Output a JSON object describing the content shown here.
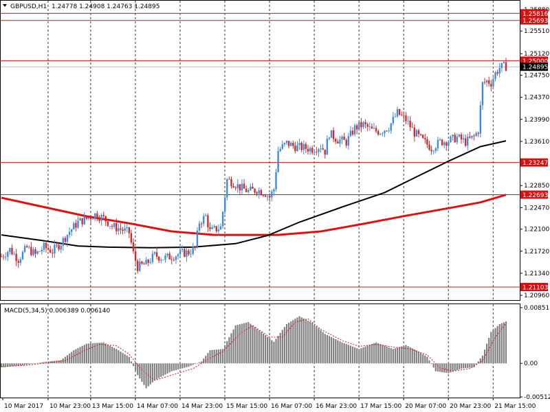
{
  "header": {
    "title": "GBPUSD,H1",
    "ohlc": "1.24778 1.24908 1.24763 1.24895"
  },
  "chart_data": {
    "type": "candlestick",
    "symbol": "GBPUSD",
    "timeframe": "H1",
    "price_ylim": [
      1.2089,
      1.2595
    ],
    "price_ticks": [
      "1.25880",
      "1.25510",
      "1.25120",
      "1.24750",
      "1.24370",
      "1.23990",
      "1.23610",
      "1.22850",
      "1.22470",
      "1.22100",
      "1.21720",
      "1.21340",
      "1.20960"
    ],
    "price_tick_values": [
      1.2588,
      1.2551,
      1.2512,
      1.2475,
      1.2437,
      1.2399,
      1.2361,
      1.2285,
      1.2247,
      1.221,
      1.2172,
      1.2134,
      1.2096
    ],
    "horizontal_levels": [
      {
        "label": "1.25816",
        "value": 1.25816
      },
      {
        "label": "1.25693",
        "value": 1.25693
      },
      {
        "label": "1.25000",
        "value": 1.25
      },
      {
        "label": "1.23247",
        "value": 1.23247
      },
      {
        "label": "1.22693",
        "value": 1.22693
      },
      {
        "label": "1.21103",
        "value": 1.21103
      }
    ],
    "current_price": {
      "label": "1.24895",
      "value": 1.24895
    },
    "x_labels": [
      "10 Mar 2017",
      "10 Mar 23:00",
      "13 Mar 15:00",
      "14 Mar 07:00",
      "14 Mar 23:00",
      "15 Mar 15:00",
      "16 Mar 07:00",
      "16 Mar 23:00",
      "17 Mar 15:00",
      "20 Mar 07:00",
      "20 Mar 23:00",
      "21 Mar 15:00"
    ],
    "close_path": [
      [
        0,
        1.2163
      ],
      [
        4,
        1.2175
      ],
      [
        8,
        1.2158
      ],
      [
        12,
        1.2178
      ],
      [
        16,
        1.2166
      ],
      [
        20,
        1.2179
      ],
      [
        24,
        1.2172
      ],
      [
        28,
        1.2186
      ],
      [
        32,
        1.2206
      ],
      [
        36,
        1.2222
      ],
      [
        40,
        1.2228
      ],
      [
        44,
        1.2235
      ],
      [
        48,
        1.2229
      ],
      [
        52,
        1.2215
      ],
      [
        56,
        1.221
      ],
      [
        60,
        1.2204
      ],
      [
        62,
        1.2168
      ],
      [
        64,
        1.2145
      ],
      [
        68,
        1.215
      ],
      [
        72,
        1.2165
      ],
      [
        76,
        1.216
      ],
      [
        80,
        1.2163
      ],
      [
        84,
        1.2168
      ],
      [
        88,
        1.217
      ],
      [
        91,
        1.2178
      ],
      [
        93,
        1.2222
      ],
      [
        96,
        1.2232
      ],
      [
        98,
        1.2206
      ],
      [
        100,
        1.2209
      ],
      [
        103,
        1.2213
      ],
      [
        106,
        1.2295
      ],
      [
        108,
        1.2292
      ],
      [
        112,
        1.2282
      ],
      [
        116,
        1.2275
      ],
      [
        120,
        1.2278
      ],
      [
        124,
        1.2272
      ],
      [
        126,
        1.2265
      ],
      [
        128,
        1.2279
      ],
      [
        130,
        1.2345
      ],
      [
        134,
        1.2358
      ],
      [
        138,
        1.2352
      ],
      [
        142,
        1.235
      ],
      [
        146,
        1.2348
      ],
      [
        150,
        1.2353
      ],
      [
        152,
        1.2344
      ],
      [
        154,
        1.2375
      ],
      [
        158,
        1.2364
      ],
      [
        162,
        1.236
      ],
      [
        166,
        1.2384
      ],
      [
        170,
        1.239
      ],
      [
        174,
        1.238
      ],
      [
        178,
        1.2378
      ],
      [
        182,
        1.2386
      ],
      [
        186,
        1.241
      ],
      [
        190,
        1.2398
      ],
      [
        194,
        1.2376
      ],
      [
        198,
        1.2362
      ],
      [
        202,
        1.235
      ],
      [
        206,
        1.236
      ],
      [
        210,
        1.2362
      ],
      [
        214,
        1.2368
      ],
      [
        218,
        1.236
      ],
      [
        222,
        1.2369
      ],
      [
        224,
        1.238
      ],
      [
        226,
        1.246
      ],
      [
        228,
        1.2465
      ],
      [
        230,
        1.2462
      ],
      [
        232,
        1.2478
      ],
      [
        234,
        1.2488
      ],
      [
        236,
        1.249
      ]
    ],
    "sma_black": [
      [
        0,
        1.22
      ],
      [
        20,
        1.219
      ],
      [
        36,
        1.2181
      ],
      [
        50,
        1.2179
      ],
      [
        70,
        1.2178
      ],
      [
        90,
        1.2179
      ],
      [
        110,
        1.2185
      ],
      [
        125,
        1.2199
      ],
      [
        140,
        1.2222
      ],
      [
        160,
        1.2248
      ],
      [
        180,
        1.2273
      ],
      [
        195,
        1.23
      ],
      [
        210,
        1.2327
      ],
      [
        225,
        1.2352
      ],
      [
        237,
        1.2362
      ]
    ],
    "sma_red": [
      [
        0,
        1.2264
      ],
      [
        20,
        1.2248
      ],
      [
        40,
        1.2232
      ],
      [
        60,
        1.222
      ],
      [
        80,
        1.2206
      ],
      [
        100,
        1.22
      ],
      [
        130,
        1.22
      ],
      [
        150,
        1.2206
      ],
      [
        170,
        1.2219
      ],
      [
        190,
        1.2233
      ],
      [
        210,
        1.2246
      ],
      [
        225,
        1.2256
      ],
      [
        237,
        1.2269
      ]
    ],
    "macd": {
      "label": "MACD(5,34,5) 0.006389 0.006140",
      "ylim": [
        -0.00512,
        0.00851
      ],
      "ticks": [
        "0.008511",
        "0.00",
        "-0.005125"
      ],
      "tick_values": [
        0.008511,
        0.0,
        -0.005125
      ],
      "hist_path": [
        [
          0,
          -0.0006
        ],
        [
          10,
          -0.0003
        ],
        [
          20,
          0.0002
        ],
        [
          28,
          0.0005
        ],
        [
          34,
          0.002
        ],
        [
          40,
          0.003
        ],
        [
          48,
          0.0032
        ],
        [
          54,
          0.0022
        ],
        [
          60,
          0.001
        ],
        [
          64,
          -0.0018
        ],
        [
          68,
          -0.0038
        ],
        [
          72,
          -0.0026
        ],
        [
          80,
          -0.0012
        ],
        [
          88,
          -0.0005
        ],
        [
          94,
          0.0003
        ],
        [
          98,
          0.002
        ],
        [
          104,
          0.0022
        ],
        [
          110,
          0.0058
        ],
        [
          116,
          0.0063
        ],
        [
          122,
          0.0048
        ],
        [
          128,
          0.0033
        ],
        [
          134,
          0.006
        ],
        [
          140,
          0.0072
        ],
        [
          146,
          0.0062
        ],
        [
          152,
          0.0045
        ],
        [
          160,
          0.0032
        ],
        [
          168,
          0.0022
        ],
        [
          176,
          0.0032
        ],
        [
          184,
          0.0022
        ],
        [
          190,
          0.0028
        ],
        [
          196,
          0.0018
        ],
        [
          200,
          0.001
        ],
        [
          204,
          -0.0012
        ],
        [
          210,
          -0.0015
        ],
        [
          216,
          -0.0008
        ],
        [
          222,
          -0.0006
        ],
        [
          226,
          0.0012
        ],
        [
          230,
          0.0048
        ],
        [
          234,
          0.006
        ],
        [
          237,
          0.0064
        ]
      ],
      "signal_path": [
        [
          0,
          -0.0005
        ],
        [
          12,
          -0.0003
        ],
        [
          22,
          0.0001
        ],
        [
          30,
          0.0004
        ],
        [
          38,
          0.0018
        ],
        [
          46,
          0.0029
        ],
        [
          54,
          0.0027
        ],
        [
          60,
          0.0014
        ],
        [
          66,
          -0.001
        ],
        [
          72,
          -0.0026
        ],
        [
          80,
          -0.0018
        ],
        [
          90,
          -0.0008
        ],
        [
          98,
          0.0008
        ],
        [
          104,
          0.0018
        ],
        [
          112,
          0.0045
        ],
        [
          118,
          0.0058
        ],
        [
          126,
          0.004
        ],
        [
          132,
          0.004
        ],
        [
          138,
          0.0063
        ],
        [
          144,
          0.0068
        ],
        [
          150,
          0.0052
        ],
        [
          160,
          0.0035
        ],
        [
          168,
          0.0026
        ],
        [
          176,
          0.0029
        ],
        [
          184,
          0.0025
        ],
        [
          192,
          0.0022
        ],
        [
          200,
          0.0013
        ],
        [
          206,
          -0.0007
        ],
        [
          212,
          -0.0012
        ],
        [
          220,
          -0.0008
        ],
        [
          226,
          0.0004
        ],
        [
          232,
          0.004
        ],
        [
          237,
          0.0061
        ]
      ]
    },
    "colors": {
      "bull": "#3d8be0",
      "bear": "#d42828",
      "sma_black": "#000000",
      "sma_red": "#e01010",
      "level": "#d41010",
      "current_price_tag": "#000000",
      "macd_hist": "#808080",
      "macd_signal": "#e01010",
      "grid": "#000000"
    }
  }
}
